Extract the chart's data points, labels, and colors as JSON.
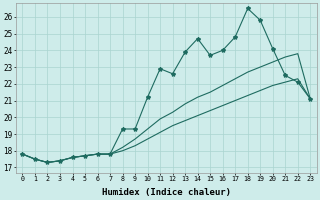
{
  "xlabel": "Humidex (Indice chaleur)",
  "background_color": "#ceecea",
  "line_color": "#1e6b60",
  "grid_color": "#aad4d0",
  "xlim": [
    -0.5,
    23.5
  ],
  "ylim": [
    16.7,
    26.8
  ],
  "xticks": [
    0,
    1,
    2,
    3,
    4,
    5,
    6,
    7,
    8,
    9,
    10,
    11,
    12,
    13,
    14,
    15,
    16,
    17,
    18,
    19,
    20,
    21,
    22,
    23
  ],
  "yticks": [
    17,
    18,
    19,
    20,
    21,
    22,
    23,
    24,
    25,
    26
  ],
  "series1_x": [
    0,
    1,
    2,
    3,
    4,
    5,
    6,
    7,
    8,
    9,
    10,
    11,
    12,
    13,
    14,
    15,
    16,
    17,
    18,
    19,
    20,
    21,
    22,
    23
  ],
  "series1_y": [
    17.8,
    17.5,
    17.3,
    17.4,
    17.6,
    17.7,
    17.8,
    17.8,
    19.3,
    19.3,
    21.2,
    22.9,
    22.6,
    23.9,
    24.7,
    23.7,
    24.0,
    24.8,
    26.5,
    25.8,
    24.1,
    22.5,
    22.1,
    21.1
  ],
  "series2_x": [
    0,
    1,
    2,
    3,
    4,
    5,
    6,
    7,
    8,
    9,
    10,
    11,
    12,
    13,
    14,
    15,
    16,
    17,
    18,
    19,
    20,
    21,
    22,
    23
  ],
  "series2_y": [
    17.8,
    17.5,
    17.3,
    17.4,
    17.6,
    17.7,
    17.8,
    17.8,
    18.2,
    18.7,
    19.3,
    19.9,
    20.3,
    20.8,
    21.2,
    21.5,
    21.9,
    22.3,
    22.7,
    23.0,
    23.3,
    23.6,
    23.8,
    21.1
  ],
  "series3_x": [
    0,
    1,
    2,
    3,
    4,
    5,
    6,
    7,
    8,
    9,
    10,
    11,
    12,
    13,
    14,
    15,
    16,
    17,
    18,
    19,
    20,
    21,
    22,
    23
  ],
  "series3_y": [
    17.8,
    17.5,
    17.3,
    17.4,
    17.6,
    17.7,
    17.8,
    17.8,
    18.0,
    18.3,
    18.7,
    19.1,
    19.5,
    19.8,
    20.1,
    20.4,
    20.7,
    21.0,
    21.3,
    21.6,
    21.9,
    22.1,
    22.3,
    21.1
  ]
}
